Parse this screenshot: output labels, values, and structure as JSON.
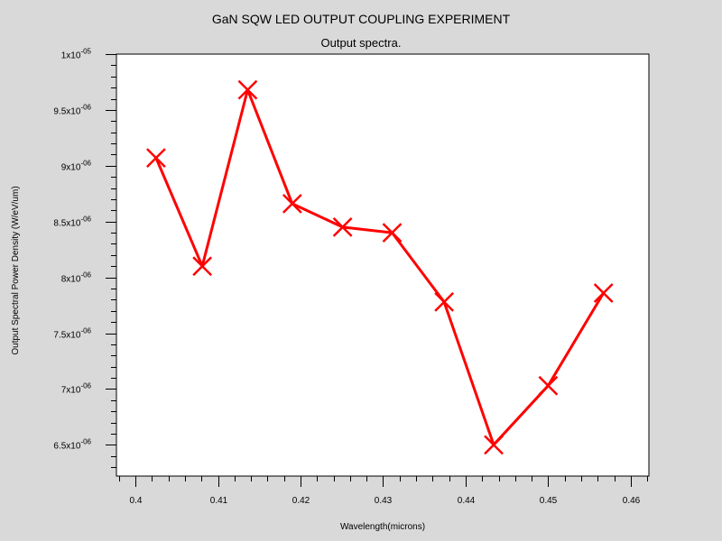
{
  "chart_data": {
    "type": "line",
    "title": "GaN SQW LED OUTPUT COUPLING EXPERIMENT",
    "subtitle": "Output spectra.",
    "xlabel": "Wavelength(microns)",
    "ylabel": "Output Spectral Power Density (W/eV/um)",
    "x_ticks": [
      0.4,
      0.41,
      0.42,
      0.43,
      0.44,
      0.45,
      0.46
    ],
    "x_tick_labels": [
      "0.4",
      "0.41",
      "0.42",
      "0.43",
      "0.44",
      "0.45",
      "0.46"
    ],
    "y_ticks": [
      6.5e-06,
      7e-06,
      7.5e-06,
      8e-06,
      8.5e-06,
      9e-06,
      9.5e-06,
      1e-05
    ],
    "y_tick_labels": [
      {
        "mant": "6.5x10",
        "exp": "-06"
      },
      {
        "mant": "7x10",
        "exp": "-06"
      },
      {
        "mant": "7.5x10",
        "exp": "-06"
      },
      {
        "mant": "8x10",
        "exp": "-06"
      },
      {
        "mant": "8.5x10",
        "exp": "-06"
      },
      {
        "mant": "9x10",
        "exp": "-06"
      },
      {
        "mant": "9.5x10",
        "exp": "-06"
      },
      {
        "mant": "1x10",
        "exp": "-05"
      }
    ],
    "xlim": [
      0.3977,
      0.4622
    ],
    "ylim": [
      6.22e-06,
      1e-05
    ],
    "grid": false,
    "series": [
      {
        "color": "#ff0000",
        "marker": "x",
        "x": [
          0.4025,
          0.4081,
          0.4136,
          0.419,
          0.4251,
          0.4311,
          0.4374,
          0.4434,
          0.45,
          0.4567
        ],
        "y": [
          9.07e-06,
          8.1e-06,
          9.68e-06,
          8.66e-06,
          8.45e-06,
          8.4e-06,
          7.78e-06,
          6.5e-06,
          7.03e-06,
          7.86e-06
        ]
      }
    ]
  }
}
